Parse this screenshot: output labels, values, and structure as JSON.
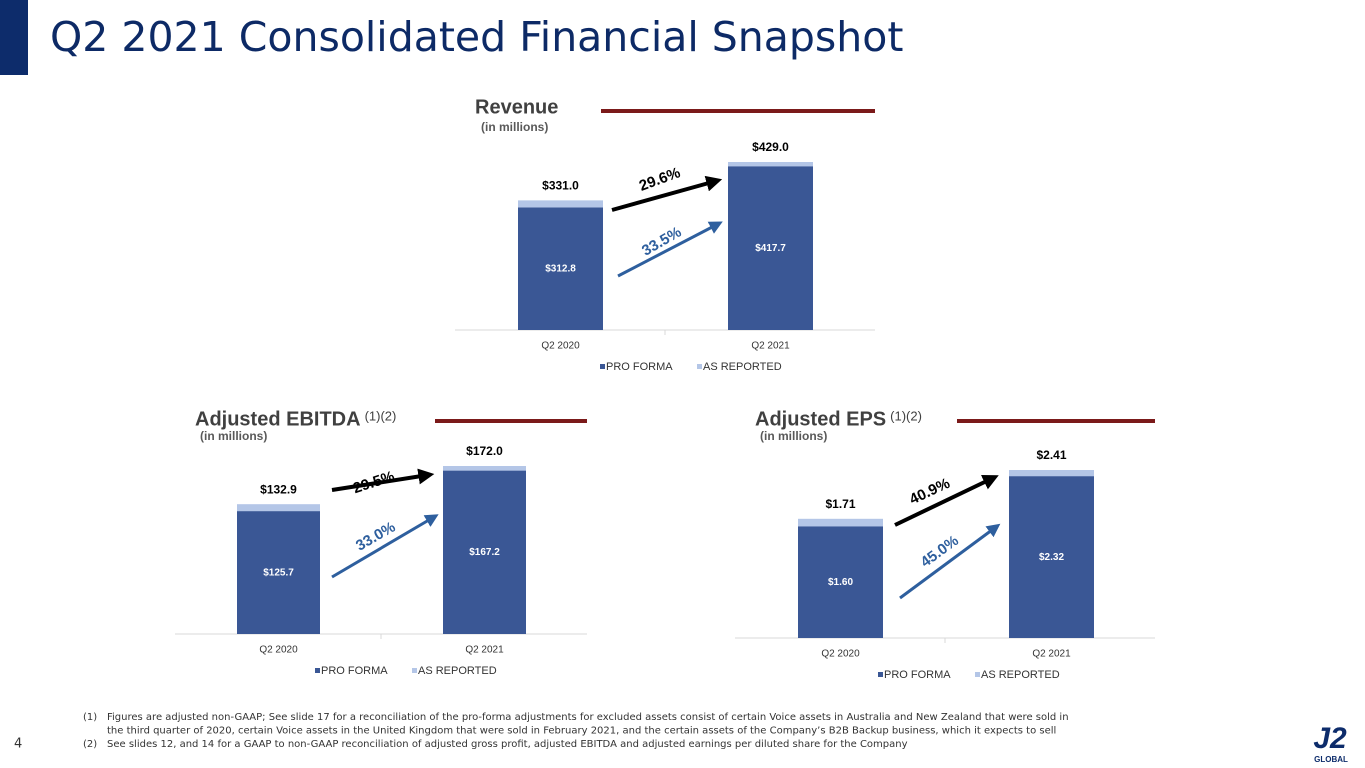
{
  "title": "Q2 2021 Consolidated Financial Snapshot",
  "page_number": "4",
  "logo": {
    "mark": "J2",
    "text": "GLOBAL"
  },
  "footnotes": [
    {
      "marker": "(1)",
      "lines": [
        "Figures are adjusted non-GAAP; See slide 17 for a reconciliation of the pro-forma adjustments for excluded assets consist of certain Voice assets in Australia and New Zealand that were sold in",
        "the third quarter of 2020, certain Voice assets in the United Kingdom that were sold in February 2021, and the certain assets of the Company’s B2B Backup business, which it expects to sell"
      ]
    },
    {
      "marker": "(2)",
      "lines": [
        "See slides 12, and 14 for a GAAP to non-GAAP reconciliation of adjusted gross profit, adjusted EBITDA and adjusted earnings per diluted share for the Company"
      ]
    }
  ],
  "chart_data": [
    {
      "type": "bar",
      "title": "Revenue",
      "subtitle": "(in millions)",
      "categories": [
        "Q2 2020",
        "Q2 2021"
      ],
      "series": [
        {
          "name": "PRO FORMA",
          "color": "#3a5795",
          "values": [
            312.8,
            417.7
          ],
          "value_labels": [
            "$312.8",
            "$417.7"
          ]
        },
        {
          "name": "AS REPORTED",
          "color": "#b4c6e7",
          "values": [
            331.0,
            429.0
          ],
          "value_labels": [
            "$331.0",
            "$429.0"
          ]
        }
      ],
      "annotations": [
        {
          "text": "29.6%",
          "color": "#000000"
        },
        {
          "text": "33.5%",
          "color": "#2e5f9e"
        }
      ]
    },
    {
      "type": "bar",
      "title": "Adjusted EBITDA",
      "title_note": "(1)(2)",
      "subtitle": "(in millions)",
      "categories": [
        "Q2 2020",
        "Q2 2021"
      ],
      "series": [
        {
          "name": "PRO FORMA",
          "color": "#3a5795",
          "values": [
            125.7,
            167.2
          ],
          "value_labels": [
            "$125.7",
            "$167.2"
          ]
        },
        {
          "name": "AS REPORTED",
          "color": "#b4c6e7",
          "values": [
            132.9,
            172.0
          ],
          "value_labels": [
            "$132.9",
            "$172.0"
          ]
        }
      ],
      "annotations": [
        {
          "text": "29.5%",
          "color": "#000000"
        },
        {
          "text": "33.0%",
          "color": "#2e5f9e"
        }
      ]
    },
    {
      "type": "bar",
      "title": "Adjusted EPS",
      "title_note": "(1)(2)",
      "subtitle": "(in millions)",
      "categories": [
        "Q2 2020",
        "Q2 2021"
      ],
      "series": [
        {
          "name": "PRO FORMA",
          "color": "#3a5795",
          "values": [
            1.6,
            2.32
          ],
          "value_labels": [
            "$1.60",
            "$2.32"
          ]
        },
        {
          "name": "AS REPORTED",
          "color": "#b4c6e7",
          "values": [
            1.71,
            2.41
          ],
          "value_labels": [
            "$1.71",
            "$2.41"
          ]
        }
      ],
      "annotations": [
        {
          "text": "40.9%",
          "color": "#000000"
        },
        {
          "text": "45.0%",
          "color": "#2e5f9e"
        }
      ]
    }
  ]
}
